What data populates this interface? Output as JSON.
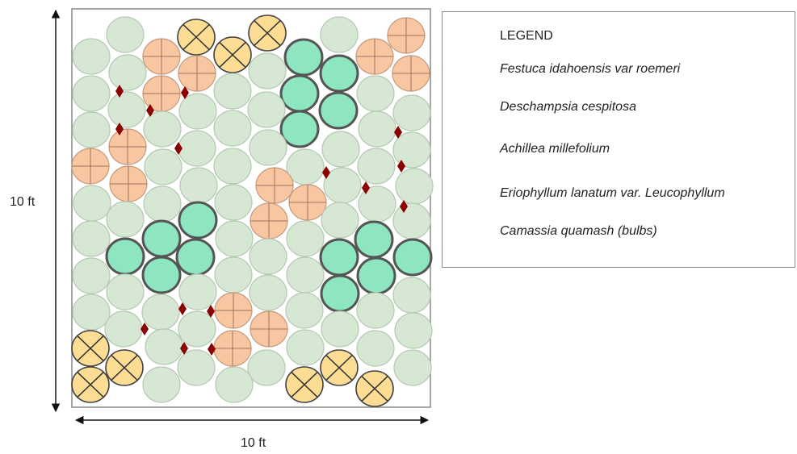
{
  "dimensions": {
    "width_label": "10 ft",
    "height_label": "10 ft"
  },
  "legend": {
    "title": "LEGEND",
    "items": [
      {
        "key": "festuca",
        "label": "Festuca idahoensis var roemeri",
        "symbol": "plain-circle",
        "fill": "#d6e8d4",
        "stroke": "#b5c9b3"
      },
      {
        "key": "deschampsia",
        "label": "Deschampsia cespitosa",
        "symbol": "circle-plus",
        "fill": "#f8c7a2",
        "stroke": "#c69c80"
      },
      {
        "key": "achillea",
        "label": "Achillea millefolium",
        "symbol": "circle-x",
        "fill": "#fddd94",
        "stroke": "#444444"
      },
      {
        "key": "eriophyllum",
        "label": "Eriophyllum lanatum var. Leucophyllum",
        "symbol": "thick-circle",
        "fill": "#8ee6c0",
        "stroke": "#555555"
      },
      {
        "key": "camassia",
        "label": "Camassia quamash (bulbs)",
        "symbol": "diamond",
        "fill": "#8b0000",
        "stroke": "#8b0000"
      }
    ]
  }
}
